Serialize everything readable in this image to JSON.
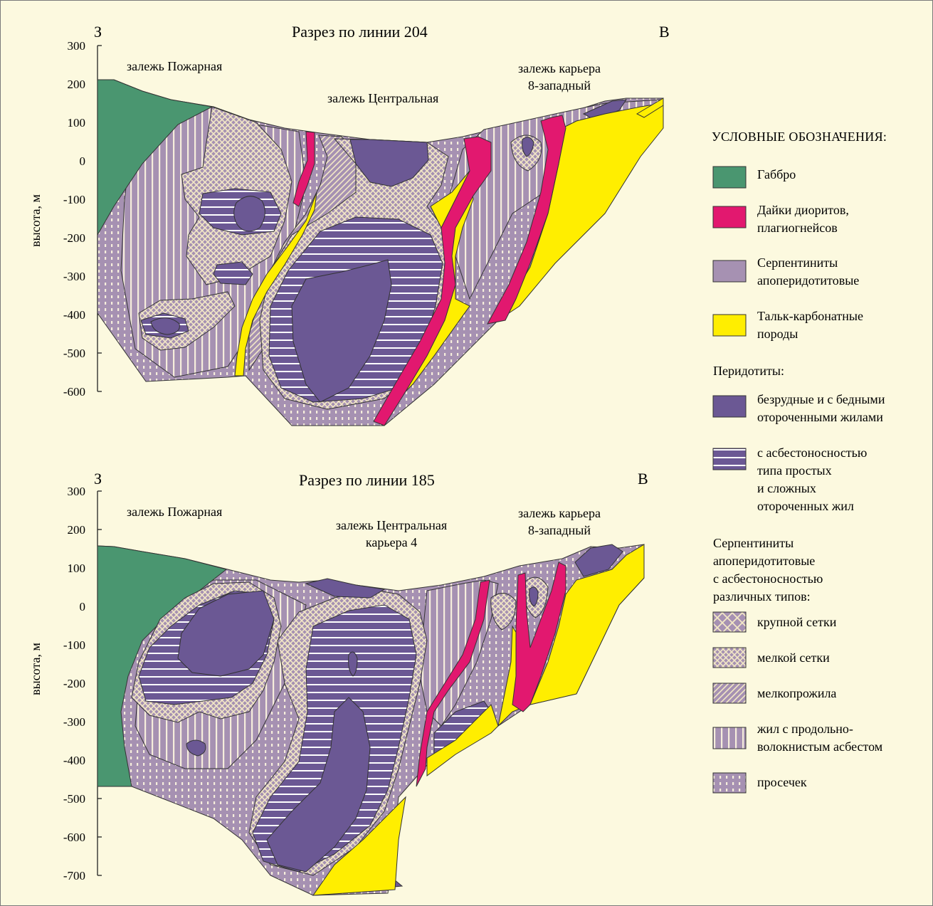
{
  "colors": {
    "background": "#fcf9df",
    "gabbro": "#4a9670",
    "dikes": "#e2186f",
    "serpentinite": "#a691b2",
    "talc": "#ffee00",
    "peridotite": "#6b5894",
    "peridotite_asb_stripe": "#ffffff",
    "grid_pattern": "#f3e8c6"
  },
  "sections": [
    {
      "title": "Разрез по линии 204",
      "west": "З",
      "east": "В",
      "ylabel": "высота, м",
      "ticks": [
        "300",
        "200",
        "100",
        "0",
        "-100",
        "-200",
        "-300",
        "-400",
        "-500",
        "-600"
      ],
      "deposits": {
        "pozharnaya": "залежь Пожарная",
        "central": "залежь Центральная",
        "quarry_line1": "залежь карьера",
        "quarry_line2": "8-западный"
      }
    },
    {
      "title": "Разрез по линии 185",
      "west": "З",
      "east": "В",
      "ylabel": "высота, м",
      "ticks": [
        "300",
        "200",
        "100",
        "0",
        "-100",
        "-200",
        "-300",
        "-400",
        "-500",
        "-600",
        "-700"
      ],
      "deposits": {
        "pozharnaya": "залежь Пожарная",
        "central_line1": "залежь Центральная",
        "central_line2": "карьера 4",
        "quarry_line1": "залежь карьера",
        "quarry_line2": "8-западный"
      }
    }
  ],
  "legend": {
    "title": "УСЛОВНЫЕ ОБОЗНАЧЕНИЯ:",
    "gabbro": "Габбро",
    "dikes": [
      "Дайки диоритов,",
      "плагиогнейсов"
    ],
    "serpentinite": [
      "Серпентиниты",
      "апоперидотитовые"
    ],
    "talc": [
      "Тальк-карбонатные",
      "породы"
    ],
    "peridotites_header": "Перидотиты:",
    "peridotite_barren": [
      "безрудные и с бедными",
      "отороченными жилами"
    ],
    "peridotite_asbestos": [
      "с асбестоносностью",
      "типа простых",
      "и сложных",
      "отороченных жил"
    ],
    "serp_asb_header": [
      "Серпентиниты",
      "апоперидотитовые",
      "с асбестоносностью",
      "различных типов:"
    ],
    "coarse_mesh": "крупной сетки",
    "fine_mesh": "мелкой сетки",
    "fine_veinlet": "мелкопрожила",
    "cross_fiber": [
      "жил с продольно-",
      "волокнистым асбестом"
    ],
    "prosechki": "просечек"
  }
}
